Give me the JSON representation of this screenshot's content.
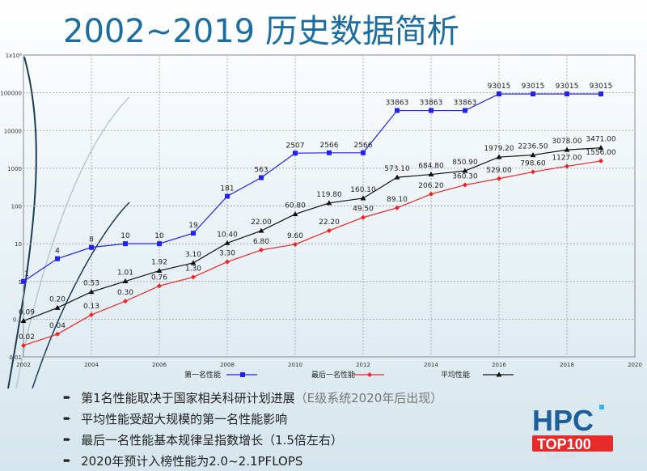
{
  "title": "2002~2019 历史数据简析",
  "chart_data": {
    "type": "line",
    "x": [
      2002,
      2003,
      2004,
      2005,
      2006,
      2007,
      2008,
      2009,
      2010,
      2011,
      2012,
      2013,
      2014,
      2015,
      2016,
      2017,
      2018,
      2019
    ],
    "xticks": [
      "2002",
      "2004",
      "2006",
      "2008",
      "2010",
      "2012",
      "2014",
      "2016",
      "2018",
      "2020"
    ],
    "yticks": [
      "0.01",
      "0.1",
      "1",
      "10",
      "100",
      "1000",
      "10000",
      "100000",
      "1x10⁶"
    ],
    "yscale": "log",
    "xlim": [
      2002,
      2020
    ],
    "ylim": [
      0.01,
      1000000
    ],
    "grid": true,
    "legend_placement": "bottom",
    "series": [
      {
        "name": "第一名性能",
        "color": "#2222ee",
        "marker": "square",
        "values": [
          1,
          4,
          8,
          10,
          10,
          19,
          181,
          563,
          2507,
          2566,
          2566,
          33863,
          33863,
          33863,
          93015,
          93015,
          93015,
          93015
        ],
        "labels": [
          "1",
          "4",
          "8",
          "10",
          "10",
          "19",
          "181",
          "563",
          "2507",
          "2566",
          "2566",
          "33863",
          "33863",
          "33863",
          "93015",
          "93015",
          "93015",
          "93015"
        ]
      },
      {
        "name": "最后一名性能",
        "color": "#ee2222",
        "marker": "diamond",
        "values": [
          0.02,
          0.04,
          0.13,
          0.3,
          0.76,
          1.3,
          3.3,
          6.8,
          9.6,
          22.2,
          49.5,
          89.1,
          206.2,
          360.3,
          529.0,
          798.6,
          1127.0,
          1556.0
        ],
        "labels": [
          "0.02",
          "0.04",
          "0.13",
          "0.30",
          "0.76",
          "1.30",
          "3.30",
          "6.80",
          "9.60",
          "22.20",
          "49.50",
          "89.10",
          "206.20",
          "360.30",
          "529.00",
          "798.60",
          "1127.00",
          "1556.00"
        ]
      },
      {
        "name": "平均性能",
        "color": "#111111",
        "marker": "triangle",
        "values": [
          0.09,
          0.2,
          0.53,
          1.01,
          1.92,
          3.1,
          10.4,
          22.0,
          60.8,
          119.8,
          160.1,
          573.1,
          684.8,
          850.9,
          1979.2,
          2236.5,
          3078.0,
          3471.0
        ],
        "labels": [
          "0.09",
          "0.20",
          "0.53",
          "1.01",
          "1.92",
          "3.10",
          "10.40",
          "22.00",
          "60.80",
          "119.80",
          "160.10",
          "573.10",
          "684.80",
          "850.90",
          "1979.20",
          "2236.50",
          "3078.00",
          "3471.00"
        ]
      }
    ]
  },
  "bullets": [
    {
      "text": "第1名性能取决于国家相关科研计划进展",
      "note": "（E级系统2020年后出现）"
    },
    {
      "text": "平均性能受超大规模的第一名性能影响",
      "note": ""
    },
    {
      "text": "最后一名性能基本规律呈指数增长（1.5倍左右）",
      "note": ""
    },
    {
      "text": "2020年预计入榜性能为2.0~2.1PFLOPS",
      "note": ""
    }
  ],
  "logo": {
    "top": "HPC",
    "bottom": "TOP100",
    "watermark": "智东西",
    "watermark_sub": "zhidx.com"
  }
}
